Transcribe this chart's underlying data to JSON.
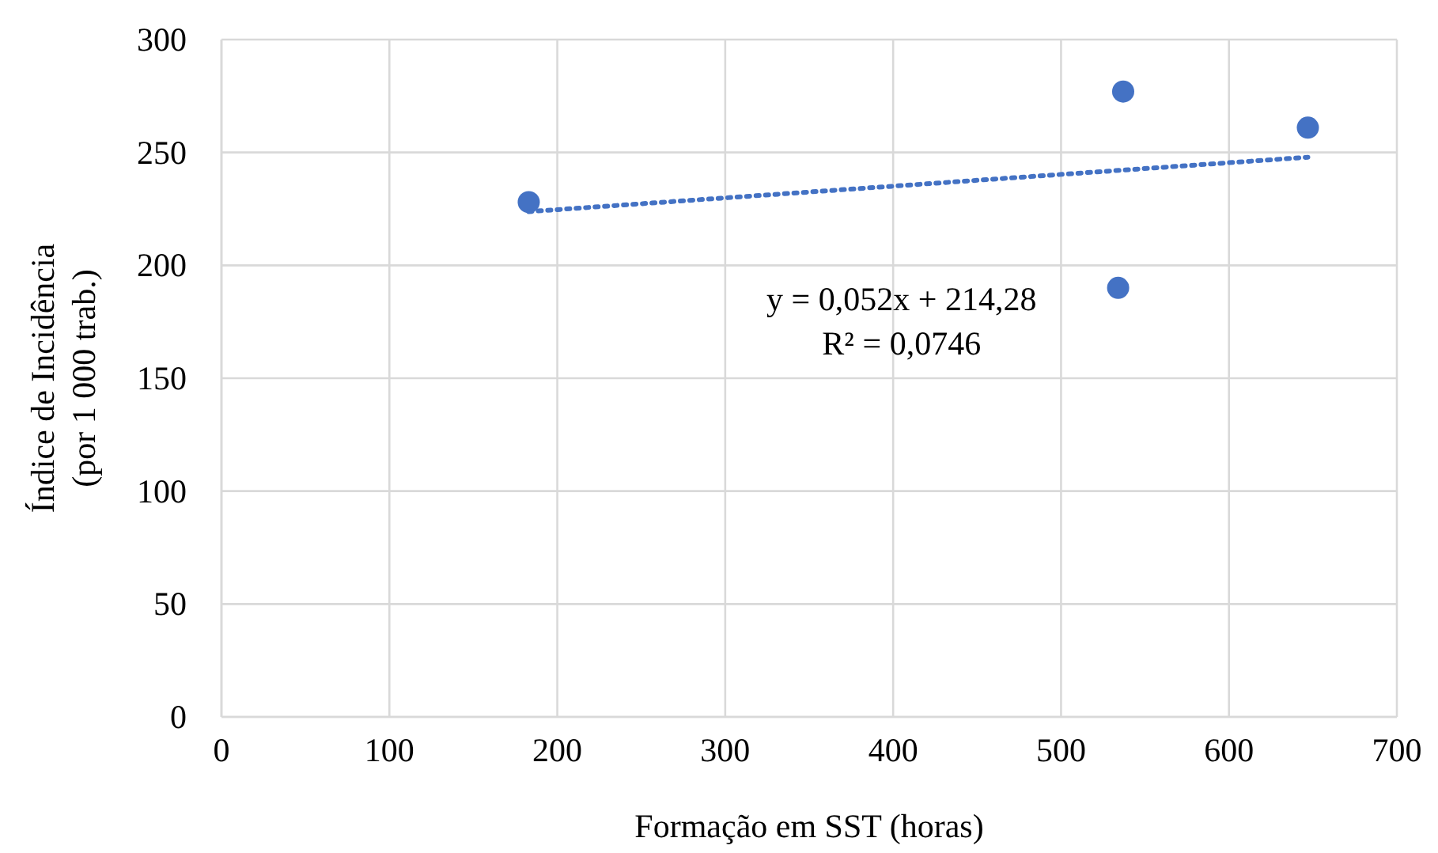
{
  "chart_data": {
    "type": "scatter",
    "xlabel": "Formação em SST (horas)",
    "ylabel": "Índice de Incidência\n(por 1 000 trab.)",
    "xlim": [
      0,
      700
    ],
    "xticks": [
      0,
      100,
      200,
      300,
      400,
      500,
      600,
      700
    ],
    "ylim": [
      0,
      300
    ],
    "yticks": [
      0,
      50,
      100,
      150,
      200,
      250,
      300
    ],
    "grid": true,
    "series": [
      {
        "type": "scatter",
        "color": "#4472c4",
        "marker": "circle",
        "x": [
          183,
          537,
          534,
          647
        ],
        "values": [
          228,
          277,
          190,
          261
        ]
      },
      {
        "type": "line",
        "color": "#4472c4",
        "marker": "none",
        "line_style": "dotted",
        "x": [
          183,
          647
        ],
        "values": [
          223.8,
          247.9
        ]
      }
    ],
    "annotations": [
      "y = 0,052x + 214,28",
      "R² = 0,0746"
    ]
  }
}
